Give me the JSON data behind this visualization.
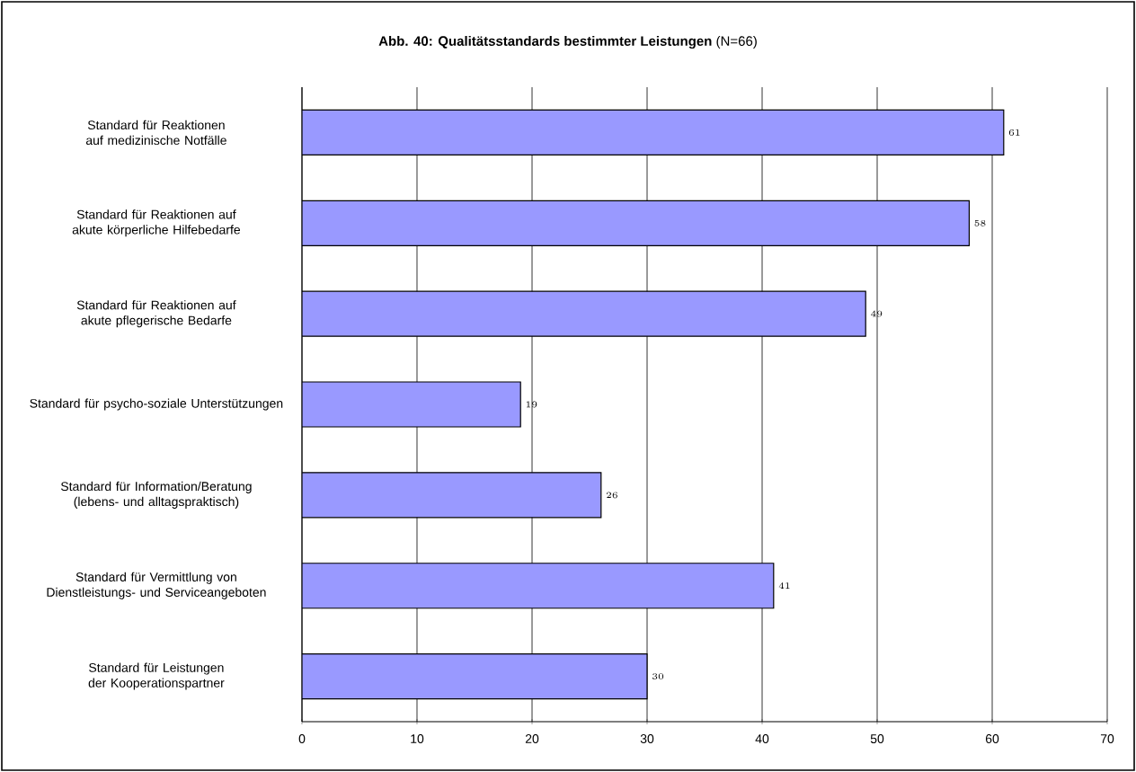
{
  "chart_data": {
    "type": "bar",
    "orientation": "horizontal",
    "title": "**Abb. 40: Qualitätsstandards bestimmter Leistungen** (N=66)",
    "categories": [
      "Standard für Reaktionen auf medizinische Notfälle",
      "Standard für Reaktionen auf akute körperliche Hilfebedarfe",
      "Standard für Reaktionen auf akute pflegerische Bedarfe",
      "Standard für psycho-soziale Unterstützungen",
      "Standard für Information/Beratung (lebens- und alltagspraktisch)",
      "Standard für Vermittlung von Dienstleistungs- und Serviceangeboten",
      "Standard für Leistungen der Kooperationspartner"
    ],
    "values": [
      61,
      58,
      49,
      19,
      26,
      41,
      30
    ],
    "color": "#9999ff",
    "xlim": [
      0,
      70
    ],
    "xticks": [
      0,
      10,
      20,
      30,
      40,
      50,
      60,
      70
    ],
    "grid": "x",
    "data_labels": true
  }
}
